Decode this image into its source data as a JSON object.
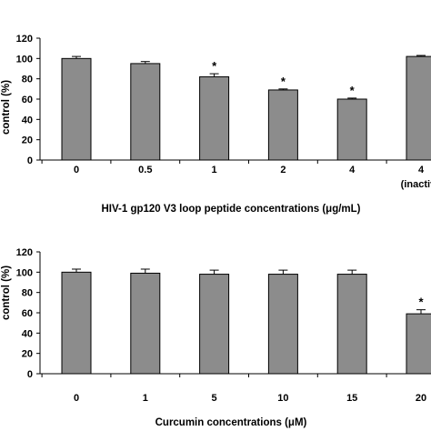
{
  "chart_data": [
    {
      "type": "bar",
      "categories": [
        "0",
        "0.5",
        "1",
        "2",
        "4",
        "4"
      ],
      "category_sublabels": [
        "",
        "",
        "",
        "",
        "",
        "(inactiva"
      ],
      "values": [
        100,
        95,
        82,
        69,
        60,
        102
      ],
      "errors": [
        2,
        2,
        3,
        1,
        1,
        1
      ],
      "significant": [
        false,
        false,
        true,
        true,
        true,
        false
      ],
      "significance_marker": "*",
      "xlabel": "HIV-1 gp120 V3 loop peptide concentrations (μg/mL)",
      "ylabel": "control (%)",
      "ylim": [
        0,
        120
      ],
      "yticks": [
        "0",
        "20",
        "40",
        "60",
        "80",
        "100",
        "120"
      ],
      "grid": false,
      "bar_color": "#8c8c8c"
    },
    {
      "type": "bar",
      "categories": [
        "0",
        "1",
        "5",
        "10",
        "15",
        "20"
      ],
      "category_sublabels": [
        "",
        "",
        "",
        "",
        "",
        ""
      ],
      "values": [
        100,
        99,
        98,
        98,
        98,
        59
      ],
      "errors": [
        3,
        4,
        4,
        4,
        4,
        4
      ],
      "significant": [
        false,
        false,
        false,
        false,
        false,
        true
      ],
      "significance_marker": "*",
      "xlabel": "Curcumin concentrations (μM)",
      "ylabel": "control (%)",
      "ylim": [
        0,
        120
      ],
      "yticks": [
        "0",
        "20",
        "40",
        "60",
        "80",
        "100",
        "120"
      ],
      "grid": false,
      "bar_color": "#8c8c8c"
    }
  ]
}
